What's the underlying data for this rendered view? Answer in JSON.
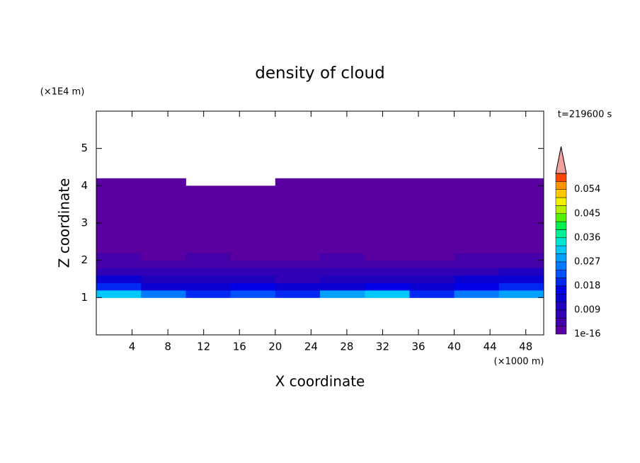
{
  "chart_data": {
    "type": "contour",
    "title": "density of cloud",
    "time_label": "t=219600 s",
    "x_label": "X coordinate",
    "y_label": "Z coordinate",
    "x_unit": "(×1000 m)",
    "y_unit": "(×1E4 m)",
    "xlim": [
      0,
      50
    ],
    "ylim": [
      0,
      6
    ],
    "xticks": [
      4,
      8,
      12,
      16,
      20,
      24,
      28,
      32,
      36,
      40,
      44,
      48
    ],
    "yticks": [
      1,
      2,
      3,
      4,
      5
    ],
    "x": [
      2.5,
      7.5,
      12.5,
      17.5,
      22.5,
      27.5,
      32.5,
      37.5,
      42.5,
      47.5
    ],
    "y": [
      1.1,
      1.3,
      1.5,
      1.7,
      1.9,
      2.1,
      2.3,
      2.5,
      2.7,
      2.9,
      3.1,
      3.3,
      3.5,
      3.7,
      3.9,
      4.1
    ],
    "z": [
      [
        0.03,
        0.025,
        0.02,
        0.022,
        0.018,
        0.028,
        0.03,
        0.02,
        0.025,
        0.027
      ],
      [
        0.018,
        0.014,
        0.012,
        0.015,
        0.012,
        0.014,
        0.016,
        0.013,
        0.017,
        0.02
      ],
      [
        0.012,
        0.01,
        0.009,
        0.011,
        0.008,
        0.01,
        0.011,
        0.009,
        0.012,
        0.013
      ],
      [
        0.008,
        0.007,
        0.006,
        0.007,
        0.006,
        0.008,
        0.007,
        0.006,
        0.008,
        0.009
      ],
      [
        0.005,
        0.004,
        0.004,
        0.005,
        0.003,
        0.004,
        0.005,
        0.004,
        0.004,
        0.005
      ],
      [
        0.003,
        0.002,
        0.003,
        0.002,
        0.002,
        0.003,
        0.002,
        0.002,
        0.003,
        0.003
      ],
      [
        0.001,
        0.001,
        0.002,
        0.001,
        0.001,
        0.001,
        0.001,
        0.001,
        0.002,
        0.001
      ],
      [
        0.001,
        0.001,
        0.001,
        0.001,
        0.001,
        0.001,
        0.001,
        0.001,
        0.001,
        0.001
      ],
      [
        0.001,
        0.001,
        0.001,
        0.001,
        0.001,
        0.001,
        0.001,
        0.001,
        0.001,
        0.001
      ],
      [
        0.001,
        0.001,
        0.001,
        0.001,
        0.001,
        0.001,
        0.001,
        0.001,
        0.001,
        0.001
      ],
      [
        0.001,
        0.001,
        0.001,
        0.001,
        0.001,
        0.001,
        0.001,
        0.001,
        0.001,
        0.001
      ],
      [
        0.001,
        0.001,
        0.001,
        0.001,
        0.001,
        0.001,
        0.001,
        0.001,
        0.001,
        0.001
      ],
      [
        0.001,
        0.001,
        0.001,
        0.001,
        0.001,
        0.001,
        0.001,
        0.001,
        0.001,
        0.001
      ],
      [
        0.001,
        0.001,
        0.001,
        0.001,
        0.001,
        0.001,
        0.001,
        0.001,
        0.001,
        0.001
      ],
      [
        0.001,
        0.0005,
        0.0005,
        0.0005,
        0.001,
        0.001,
        0.001,
        0.001,
        0.001,
        0.001
      ],
      [
        0.0005,
        0.0005,
        null,
        null,
        0.0005,
        0.0005,
        0.0005,
        0.0005,
        0.0005,
        0.0005
      ]
    ],
    "levels": [
      1e-16,
      0.003,
      0.006,
      0.009,
      0.012,
      0.015,
      0.018,
      0.021,
      0.024,
      0.027,
      0.03,
      0.033,
      0.036,
      0.039,
      0.042,
      0.045,
      0.048,
      0.051,
      0.054,
      0.057,
      0.06
    ],
    "colors": [
      "#5a00a0",
      "#4600aa",
      "#3200b4",
      "#1e00be",
      "#0a00d2",
      "#0000e6",
      "#0028f0",
      "#0050ff",
      "#0078ff",
      "#00a0ff",
      "#00c8ff",
      "#00e6d2",
      "#00f096",
      "#00f050",
      "#50f000",
      "#b4f000",
      "#f0f000",
      "#ffc800",
      "#ff9600",
      "#ff4600"
    ],
    "extend_color": "#f0a0a0",
    "colorbar_ticks": [
      1e-16,
      0.009,
      0.018,
      0.027,
      0.036,
      0.045,
      0.054
    ]
  }
}
